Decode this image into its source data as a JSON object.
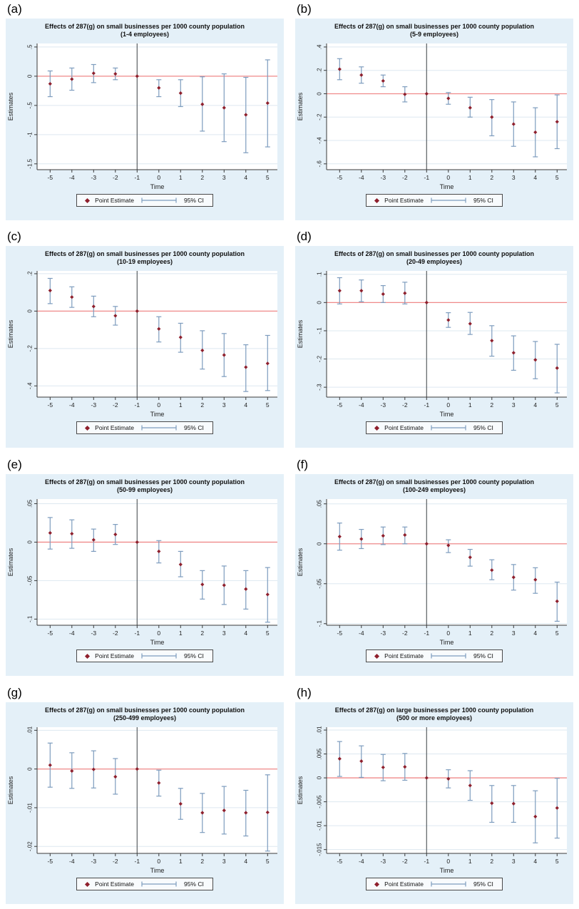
{
  "legend": {
    "point_label": "Point Estimate",
    "ci_label": "95% CI"
  },
  "colors": {
    "figure_bg": "#e4f0f8",
    "plot_bg": "#ffffff",
    "grid": "#dde8f0",
    "zero_line": "#f08a8a",
    "ref_line": "#5a5f63",
    "ci": "#7d9cbe",
    "point": "#8e1f2c",
    "axis": "#3a3a3a",
    "text": "#1f1f1f",
    "legend_border": "#4a4a4a",
    "legend_bg": "#f8fbfd"
  },
  "chart_data": [
    {
      "letter": "(a)",
      "title": "Effects of 287(g) on small businesses per 1000 county population",
      "subtitle": "(1-4 employees)",
      "type": "scatter",
      "xlabel": "Time",
      "ylabel": "Estimates",
      "x": [
        -5,
        -4,
        -3,
        -2,
        -1,
        0,
        1,
        2,
        3,
        4,
        5
      ],
      "estimates": [
        -0.13,
        -0.05,
        0.05,
        0.04,
        0,
        -0.2,
        -0.29,
        -0.48,
        -0.54,
        -0.66,
        -0.46
      ],
      "ci_low": [
        -0.35,
        -0.24,
        -0.11,
        -0.06,
        0,
        -0.35,
        -0.52,
        -0.94,
        -1.12,
        -1.31,
        -1.21
      ],
      "ci_high": [
        0.09,
        0.14,
        0.2,
        0.14,
        0,
        -0.06,
        -0.06,
        -0.01,
        0.04,
        -0.02,
        0.28
      ],
      "reference_x": -1,
      "y_ticks": [
        ".5",
        "0",
        "-.5",
        "-1",
        "-1.5"
      ],
      "ylim": [
        -1.6,
        0.56
      ],
      "xlim": [
        -5.6,
        5.45
      ]
    },
    {
      "letter": "(b)",
      "title": "Effects of 287(g) on small businesses per 1000 county population",
      "subtitle": "(5-9 employees)",
      "type": "scatter",
      "xlabel": "Time",
      "ylabel": "Estimates",
      "x": [
        -5,
        -4,
        -3,
        -2,
        -1,
        0,
        1,
        2,
        3,
        4,
        5
      ],
      "estimates": [
        0.21,
        0.16,
        0.11,
        -0.005,
        0,
        -0.04,
        -0.12,
        -0.2,
        -0.26,
        -0.33,
        -0.24
      ],
      "ci_low": [
        0.12,
        0.09,
        0.06,
        -0.07,
        0,
        -0.09,
        -0.2,
        -0.36,
        -0.45,
        -0.54,
        -0.47
      ],
      "ci_high": [
        0.3,
        0.23,
        0.16,
        0.06,
        0,
        0.01,
        -0.03,
        -0.05,
        -0.07,
        -0.12,
        -0.01
      ],
      "reference_x": -1,
      "y_ticks": [
        ".4",
        ".2",
        "0",
        "-.2",
        "-.4",
        "-.6"
      ],
      "ylim": [
        -0.65,
        0.43
      ],
      "xlim": [
        -5.6,
        5.45
      ]
    },
    {
      "letter": "(c)",
      "title": "Effects of 287(g) on small businesses per 1000 county population",
      "subtitle": "(10-19 employees)",
      "type": "scatter",
      "xlabel": "Time",
      "ylabel": "Estimates",
      "x": [
        -5,
        -4,
        -3,
        -2,
        -1,
        0,
        1,
        2,
        3,
        4,
        5
      ],
      "estimates": [
        0.11,
        0.075,
        0.025,
        -0.025,
        0,
        -0.095,
        -0.14,
        -0.21,
        -0.235,
        -0.3,
        -0.28
      ],
      "ci_low": [
        0.04,
        0.02,
        -0.03,
        -0.075,
        0,
        -0.165,
        -0.22,
        -0.31,
        -0.35,
        -0.43,
        -0.425
      ],
      "ci_high": [
        0.175,
        0.13,
        0.08,
        0.025,
        0,
        -0.03,
        -0.065,
        -0.105,
        -0.12,
        -0.18,
        -0.13
      ],
      "reference_x": -1,
      "y_ticks": [
        ".2",
        "0",
        "-.2",
        "-.4"
      ],
      "ylim": [
        -0.46,
        0.215
      ],
      "xlim": [
        -5.6,
        5.45
      ]
    },
    {
      "letter": "(d)",
      "title": "Effects of 287(g) on small businesses per 1000 county population",
      "subtitle": "(20-49 employees)",
      "type": "scatter",
      "xlabel": "Time",
      "ylabel": "Estimates",
      "x": [
        -5,
        -4,
        -3,
        -2,
        -1,
        0,
        1,
        2,
        3,
        4,
        5
      ],
      "estimates": [
        0.042,
        0.042,
        0.03,
        0.033,
        0,
        -0.062,
        -0.075,
        -0.135,
        -0.178,
        -0.203,
        -0.232
      ],
      "ci_low": [
        -0.005,
        0.003,
        0.0,
        -0.005,
        0,
        -0.088,
        -0.113,
        -0.19,
        -0.24,
        -0.27,
        -0.32
      ],
      "ci_high": [
        0.088,
        0.08,
        0.06,
        0.072,
        0,
        -0.036,
        -0.035,
        -0.082,
        -0.118,
        -0.138,
        -0.148
      ],
      "reference_x": -1,
      "y_ticks": [
        ".1",
        "0",
        "-.1",
        "-.2",
        "-.3"
      ],
      "ylim": [
        -0.335,
        0.112
      ],
      "xlim": [
        -5.6,
        5.45
      ]
    },
    {
      "letter": "(e)",
      "title": "Effects of 287(g) on small businesses per 1000 county population",
      "subtitle": "(50-99 employees)",
      "type": "scatter",
      "xlabel": "Time",
      "ylabel": "Estimates",
      "x": [
        -5,
        -4,
        -3,
        -2,
        -1,
        0,
        1,
        2,
        3,
        4,
        5
      ],
      "estimates": [
        0.012,
        0.011,
        0.003,
        0.01,
        0,
        -0.012,
        -0.029,
        -0.055,
        -0.056,
        -0.061,
        -0.068
      ],
      "ci_low": [
        -0.009,
        -0.008,
        -0.012,
        -0.003,
        0,
        -0.027,
        -0.045,
        -0.074,
        -0.081,
        -0.087,
        -0.104
      ],
      "ci_high": [
        0.032,
        0.029,
        0.017,
        0.023,
        0,
        0.002,
        -0.012,
        -0.037,
        -0.031,
        -0.037,
        -0.033
      ],
      "reference_x": -1,
      "y_ticks": [
        ".05",
        "0",
        "-.05",
        "-.1"
      ],
      "ylim": [
        -0.108,
        0.056
      ],
      "xlim": [
        -5.6,
        5.45
      ]
    },
    {
      "letter": "(f)",
      "title": "Effects of 287(g) on small businesses per 1000 county population",
      "subtitle": "(100-249 employees)",
      "type": "scatter",
      "xlabel": "Time",
      "ylabel": "Estimates",
      "x": [
        -5,
        -4,
        -3,
        -2,
        -1,
        0,
        1,
        2,
        3,
        4,
        5
      ],
      "estimates": [
        0.009,
        0.006,
        0.01,
        0.011,
        0,
        -0.002,
        -0.017,
        -0.033,
        -0.042,
        -0.045,
        -0.072
      ],
      "ci_low": [
        -0.008,
        -0.006,
        -0.001,
        0.0,
        0,
        -0.011,
        -0.028,
        -0.045,
        -0.058,
        -0.062,
        -0.097
      ],
      "ci_high": [
        0.026,
        0.018,
        0.021,
        0.021,
        0,
        0.005,
        -0.007,
        -0.02,
        -0.026,
        -0.03,
        -0.048
      ],
      "reference_x": -1,
      "y_ticks": [
        ".05",
        "0",
        "-.05",
        "-.1"
      ],
      "ylim": [
        -0.102,
        0.056
      ],
      "xlim": [
        -5.6,
        5.45
      ]
    },
    {
      "letter": "(g)",
      "title": "Effects of 287(g) on small businesses per 1000 county population",
      "subtitle": "(250-499 employees)",
      "type": "scatter",
      "xlabel": "Time",
      "ylabel": "Estimates",
      "x": [
        -5,
        -4,
        -3,
        -2,
        -1,
        0,
        1,
        2,
        3,
        4,
        5
      ],
      "estimates": [
        0.001,
        -0.0005,
        -0.0001,
        -0.002,
        0,
        -0.0036,
        -0.009,
        -0.0113,
        -0.0107,
        -0.0113,
        -0.0112
      ],
      "ci_low": [
        -0.0047,
        -0.005,
        -0.0049,
        -0.0065,
        0,
        -0.007,
        -0.013,
        -0.0164,
        -0.0168,
        -0.0173,
        -0.0212
      ],
      "ci_high": [
        0.0067,
        0.0042,
        0.0047,
        0.0027,
        0,
        -0.0003,
        -0.005,
        -0.0063,
        -0.0045,
        -0.0055,
        -0.0015
      ],
      "reference_x": -1,
      "y_ticks": [
        ".01",
        "0",
        "-.01",
        "-.02"
      ],
      "ylim": [
        -0.0218,
        0.0108
      ],
      "xlim": [
        -5.6,
        5.45
      ]
    },
    {
      "letter": "(h)",
      "title": "Effects of 287(g) on large businesses per 1000 county population",
      "subtitle": "(500 or more employees)",
      "type": "scatter",
      "xlabel": "Time",
      "ylabel": "Estimates",
      "x": [
        -5,
        -4,
        -3,
        -2,
        -1,
        0,
        1,
        2,
        3,
        4,
        5
      ],
      "estimates": [
        0.004,
        0.0035,
        0.0022,
        0.0023,
        0,
        -0.0002,
        -0.0016,
        -0.0053,
        -0.0054,
        -0.0081,
        -0.0063
      ],
      "ci_low": [
        0.0003,
        0.0001,
        -0.0006,
        -0.0005,
        0,
        -0.0021,
        -0.0047,
        -0.0093,
        -0.0093,
        -0.0136,
        -0.0126
      ],
      "ci_high": [
        0.0076,
        0.0067,
        0.0049,
        0.0051,
        0,
        0.0017,
        0.0015,
        -0.0016,
        -0.0016,
        -0.0027,
        -0.0001
      ],
      "reference_x": -1,
      "y_ticks": [
        ".01",
        ".005",
        "0",
        "-.005",
        "-.01",
        "-.015"
      ],
      "ylim": [
        -0.0158,
        0.0106
      ],
      "xlim": [
        -5.6,
        5.45
      ]
    }
  ]
}
